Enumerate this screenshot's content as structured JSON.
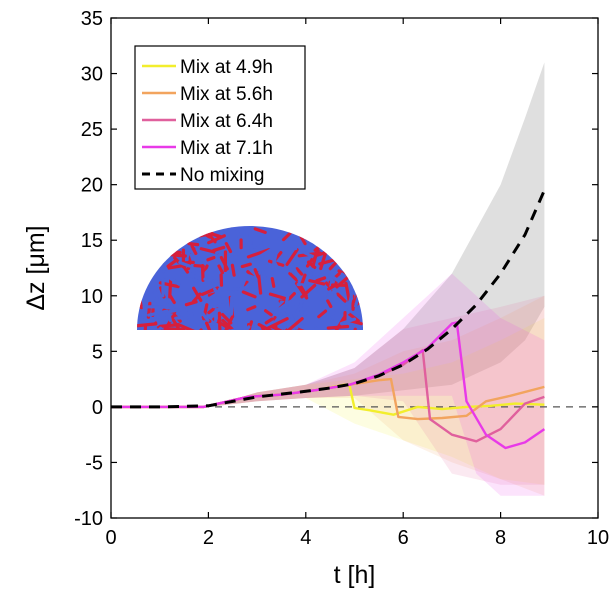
{
  "chart_data": {
    "type": "line",
    "xlabel": "t [h]",
    "ylabel": "Δz [μm]",
    "xlim": [
      0,
      10
    ],
    "ylim": [
      -10,
      35
    ],
    "xticks": [
      0,
      2,
      4,
      6,
      8,
      10
    ],
    "yticks": [
      -10,
      -5,
      0,
      5,
      10,
      15,
      20,
      25,
      30,
      35
    ],
    "grid": false,
    "legend_position": "top-left",
    "reference_line": {
      "y": 0,
      "style": "dashed",
      "color": "#555555"
    },
    "inset": "simulated colony snapshot (red and blue cells)",
    "series": [
      {
        "name": "Mix at 4.9h",
        "color": "#f2ee2c",
        "style": "solid",
        "x": [
          0,
          1,
          1.9,
          2.8,
          3.5,
          4.2,
          4.8,
          4.9,
          5.0,
          5.3,
          5.8,
          6.3,
          6.8,
          7.3,
          7.8,
          8.3,
          8.9
        ],
        "y": [
          0,
          0,
          0,
          0.9,
          1.1,
          1.5,
          2.0,
          1.9,
          -0.1,
          -0.3,
          -0.7,
          0.0,
          -0.2,
          0.0,
          0.1,
          0.3,
          0.2
        ],
        "band": {
          "x": [
            0,
            2,
            3,
            4,
            5,
            6,
            7,
            8,
            8.9
          ],
          "lower": [
            0,
            0,
            0.5,
            0.8,
            -1.5,
            -3,
            -4.5,
            -6.5,
            -7
          ],
          "upper": [
            0,
            0,
            1.3,
            2.0,
            2.5,
            3,
            4,
            6,
            8
          ]
        }
      },
      {
        "name": "Mix at 5.6h",
        "color": "#f2a45e",
        "style": "solid",
        "x": [
          0,
          1,
          1.9,
          2.8,
          3.5,
          4.2,
          4.9,
          5.5,
          5.75,
          5.9,
          6.3,
          6.8,
          7.3,
          7.7,
          8.2,
          8.9
        ],
        "y": [
          0,
          0,
          0,
          0.9,
          1.1,
          1.5,
          2.0,
          2.4,
          2.5,
          -0.9,
          -1.1,
          -1.0,
          -0.8,
          0.5,
          1.0,
          1.8
        ],
        "band": {
          "x": [
            0,
            2,
            3,
            4,
            5,
            6,
            7,
            8,
            8.9
          ],
          "lower": [
            0,
            0,
            0.5,
            0.8,
            0.8,
            -3,
            -5,
            -6.5,
            -8
          ],
          "upper": [
            0,
            0,
            1.3,
            2.0,
            3.0,
            5,
            6,
            8,
            10
          ]
        }
      },
      {
        "name": "Mix at 6.4h",
        "color": "#e0609d",
        "style": "solid",
        "x": [
          0,
          1,
          1.9,
          2.8,
          3.5,
          4.2,
          4.9,
          5.5,
          6.0,
          6.4,
          6.55,
          7.0,
          7.5,
          8.0,
          8.5,
          8.9
        ],
        "y": [
          0,
          0,
          0,
          0.9,
          1.1,
          1.5,
          2.0,
          2.8,
          3.8,
          5.1,
          -1.1,
          -2.5,
          -3.1,
          -2.0,
          0.3,
          0.9
        ],
        "band": {
          "x": [
            0,
            2,
            3,
            4,
            5,
            6,
            7,
            8,
            8.9
          ],
          "lower": [
            0,
            0,
            0.5,
            0.8,
            1.0,
            0.5,
            -6,
            -7,
            -7
          ],
          "upper": [
            0,
            0,
            1.3,
            2.0,
            3.5,
            7,
            8,
            9,
            10
          ]
        }
      },
      {
        "name": "Mix at 7.1h",
        "color": "#e83ae8",
        "style": "solid",
        "x": [
          0,
          1,
          1.9,
          2.8,
          3.5,
          4.2,
          4.9,
          5.5,
          6.0,
          6.5,
          7.0,
          7.1,
          7.3,
          7.7,
          8.1,
          8.5,
          8.9
        ],
        "y": [
          0,
          0,
          0,
          0.9,
          1.1,
          1.5,
          2.0,
          2.9,
          4.0,
          5.3,
          7.5,
          7.6,
          0.5,
          -2.5,
          -3.7,
          -3.2,
          -2.0
        ],
        "band": {
          "x": [
            0,
            2,
            3,
            4,
            5,
            6,
            7,
            7.5,
            8,
            8.9
          ],
          "lower": [
            0,
            0,
            0.5,
            0.8,
            1.0,
            1.0,
            1.0,
            -6,
            -8,
            -8
          ],
          "upper": [
            0,
            0,
            1.3,
            2.0,
            4.0,
            8,
            12,
            10,
            8,
            6
          ]
        }
      },
      {
        "name": "No mixing",
        "color": "#000000",
        "style": "dashed",
        "x": [
          0,
          1,
          2,
          3,
          4,
          4.5,
          5,
          5.5,
          6,
          6.5,
          7,
          7.5,
          8,
          8.5,
          8.9
        ],
        "y": [
          0,
          0,
          0.1,
          0.9,
          1.4,
          1.7,
          2.1,
          2.8,
          3.8,
          5.2,
          7.0,
          9.2,
          12.0,
          15.5,
          19.5
        ],
        "band": {
          "x": [
            0,
            2,
            3,
            4,
            5,
            6,
            7,
            8,
            8.5,
            8.9
          ],
          "lower": [
            0,
            0,
            0.5,
            0.8,
            1.0,
            1.5,
            2.0,
            4.0,
            6,
            9
          ],
          "upper": [
            0,
            0,
            1.3,
            2.0,
            3.5,
            7.0,
            12,
            20,
            26,
            31
          ]
        }
      }
    ]
  },
  "colors": {
    "no_mixing_band": "#b8b8b8",
    "inset_red": "#d61f3c",
    "inset_blue": "#4a63d9"
  }
}
